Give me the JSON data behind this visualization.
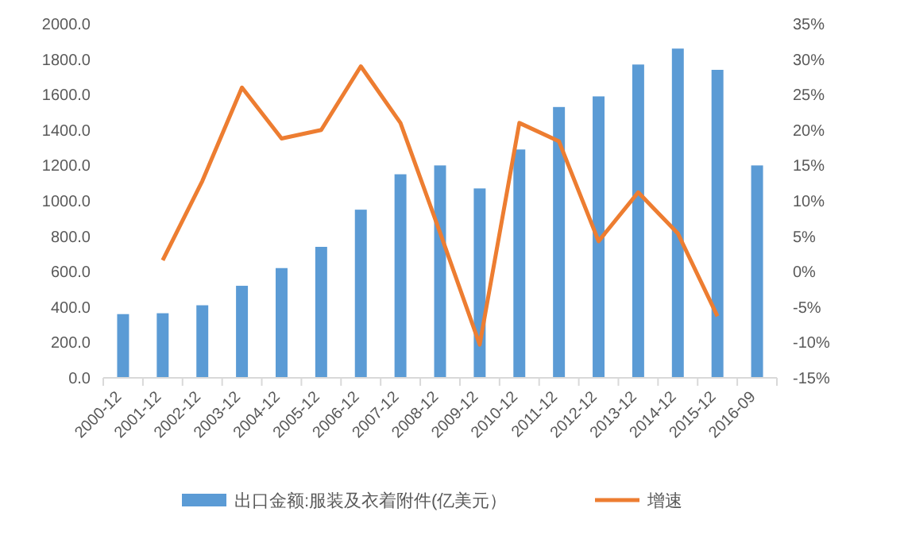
{
  "chart_data": {
    "type": "bar",
    "categories": [
      "2000-12",
      "2001-12",
      "2002-12",
      "2003-12",
      "2004-12",
      "2005-12",
      "2006-12",
      "2007-12",
      "2008-12",
      "2009-12",
      "2010-12",
      "2011-12",
      "2012-12",
      "2013-12",
      "2014-12",
      "2015-12",
      "2016-09"
    ],
    "series": [
      {
        "name": "出口金额:服装及衣着附件(亿美元）",
        "color": "#5b9bd5",
        "values": [
          360,
          365,
          410,
          520,
          620,
          740,
          950,
          1150,
          1200,
          1070,
          1290,
          1530,
          1590,
          1770,
          1860,
          1740,
          1200
        ]
      },
      {
        "name": "增速",
        "type": "line",
        "axis": "y2",
        "color": "#ed7d31",
        "values": [
          null,
          1.6,
          12.8,
          26,
          18.8,
          20,
          29,
          21,
          5.5,
          -10.3,
          21,
          18.4,
          4.3,
          11.2,
          5.4,
          -6.3,
          null
        ]
      }
    ],
    "ylim": [
      0,
      2000
    ],
    "yticks": [
      {
        "value": 0,
        "label": "0.0"
      },
      {
        "value": 200,
        "label": "200.0"
      },
      {
        "value": 400,
        "label": "400.0"
      },
      {
        "value": 600,
        "label": "600.0"
      },
      {
        "value": 800,
        "label": "800.0"
      },
      {
        "value": 1000,
        "label": "1000.0"
      },
      {
        "value": 1200,
        "label": "1200.0"
      },
      {
        "value": 1400,
        "label": "1400.0"
      },
      {
        "value": 1600,
        "label": "1600.0"
      },
      {
        "value": 1800,
        "label": "1800.0"
      },
      {
        "value": 2000,
        "label": "2000.0"
      }
    ],
    "y2lim": [
      -15,
      35
    ],
    "y2ticks": [
      {
        "value": -15,
        "label": "-15%"
      },
      {
        "value": -10,
        "label": "-10%"
      },
      {
        "value": -5,
        "label": "-5%"
      },
      {
        "value": 0,
        "label": "0%"
      },
      {
        "value": 5,
        "label": "5%"
      },
      {
        "value": 10,
        "label": "10%"
      },
      {
        "value": 15,
        "label": "15%"
      },
      {
        "value": 20,
        "label": "20%"
      },
      {
        "value": 25,
        "label": "25%"
      },
      {
        "value": 30,
        "label": "30%"
      },
      {
        "value": 35,
        "label": "35%"
      }
    ],
    "grid": false,
    "legend": "bottom",
    "marker": "none",
    "line_style": "solid"
  }
}
